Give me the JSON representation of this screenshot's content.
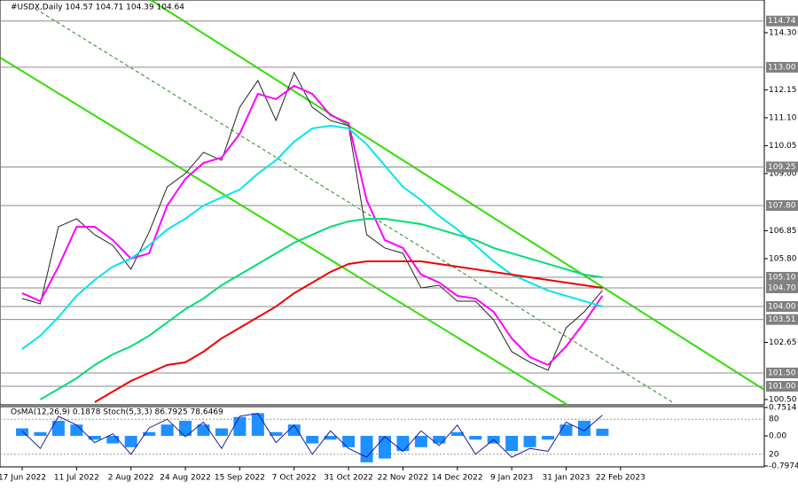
{
  "chart_data": {
    "type": "line",
    "title": "#USDX,Daily  104.57 104.71 104.39 104.64",
    "categories": [
      "17 Jun 2022",
      null,
      null,
      "11 Jul 2022",
      null,
      null,
      "2 Aug 2022",
      null,
      null,
      "24 Aug 2022",
      null,
      null,
      "15 Sep 2022",
      null,
      null,
      "7 Oct 2022",
      null,
      null,
      "31 Oct 2022",
      null,
      null,
      "22 Nov 2022",
      null,
      null,
      "14 Dec 2022",
      null,
      null,
      "9 Jan 2023",
      null,
      null,
      "31 Jan 2023",
      null,
      null,
      "22 Feb 2023"
    ],
    "series": [
      {
        "color": "#222222",
        "values": [
          104.3,
          104.1,
          107.0,
          107.3,
          106.7,
          106.3,
          105.4,
          106.8,
          108.5,
          109.0,
          109.8,
          109.5,
          111.5,
          112.5,
          111.0,
          112.8,
          111.5,
          111.0,
          110.8,
          106.7,
          106.2,
          106.0,
          104.7,
          104.8,
          104.2,
          104.2,
          103.5,
          102.3,
          101.9,
          101.6,
          103.2,
          103.8,
          104.6,
          null
        ]
      },
      {
        "color": "#ff00ff",
        "values": [
          104.5,
          104.2,
          105.5,
          107.0,
          107.0,
          106.5,
          105.8,
          106.0,
          107.8,
          108.8,
          109.4,
          109.6,
          110.5,
          112.0,
          111.8,
          112.3,
          112.0,
          111.2,
          110.9,
          108.0,
          106.5,
          106.2,
          105.2,
          104.9,
          104.4,
          104.3,
          103.8,
          102.8,
          102.1,
          101.8,
          102.5,
          103.4,
          104.4,
          null
        ]
      },
      {
        "color": "#00e5ee",
        "values": [
          102.4,
          102.9,
          103.6,
          104.4,
          105.0,
          105.5,
          105.8,
          106.3,
          106.9,
          107.3,
          107.8,
          108.1,
          108.4,
          109.0,
          109.5,
          110.2,
          110.7,
          110.8,
          110.7,
          110.1,
          109.3,
          108.5,
          108.0,
          107.4,
          106.9,
          106.3,
          105.7,
          105.2,
          104.9,
          104.6,
          104.4,
          104.2,
          104.0,
          null
        ]
      },
      {
        "color": "#00dd77",
        "values": [
          null,
          100.5,
          100.9,
          101.3,
          101.8,
          102.2,
          102.5,
          102.9,
          103.4,
          103.9,
          104.3,
          104.8,
          105.2,
          105.6,
          106.0,
          106.4,
          106.7,
          107.0,
          107.2,
          107.3,
          107.3,
          107.2,
          107.1,
          106.9,
          106.7,
          106.5,
          106.2,
          106.0,
          105.8,
          105.6,
          105.4,
          105.2,
          105.1,
          null
        ]
      },
      {
        "color": "#ee0000",
        "values": [
          null,
          null,
          null,
          null,
          100.4,
          100.8,
          101.2,
          101.5,
          101.8,
          101.9,
          102.3,
          102.8,
          103.2,
          103.6,
          104.0,
          104.5,
          104.9,
          105.3,
          105.6,
          105.7,
          105.7,
          105.7,
          105.7,
          105.6,
          105.5,
          105.4,
          105.3,
          105.2,
          105.1,
          105.0,
          104.9,
          104.8,
          104.7,
          null
        ]
      }
    ],
    "ylim": [
      100.3,
      115.53
    ],
    "yticks": [
      {
        "value": 114.3,
        "label": "114.30"
      },
      112.15,
      {
        "value": 111.1,
        "label": "111.10"
      },
      110.05,
      {
        "value": 109,
        "label": "109.00"
      },
      106.85,
      {
        "value": 105.8,
        "label": "105.80"
      },
      102.65,
      {
        "value": 100.5,
        "label": "100.50"
      }
    ],
    "levels": [
      114.74,
      {
        "value": 113,
        "label": "113.00"
      },
      109.25,
      {
        "value": 107.8,
        "label": "107.80"
      },
      {
        "value": 105.1,
        "label": "105.10"
      },
      {
        "value": 104.7,
        "label": "104.70"
      },
      {
        "value": 104,
        "label": "104.00"
      },
      103.51,
      {
        "value": 101.5,
        "label": "101.50"
      },
      {
        "value": 101,
        "label": "101.00"
      }
    ],
    "indicator": {
      "title": "OsMA(12,26,9) 0.1878  Stoch(5,3,3) 86.7925 78.6469",
      "osma": {
        "color": "#1e90ff",
        "values": [
          0.2,
          0.1,
          0.4,
          0.3,
          -0.1,
          -0.2,
          -0.3,
          0.1,
          0.3,
          0.4,
          0.3,
          0.2,
          0.5,
          0.6,
          0.1,
          0.3,
          -0.2,
          -0.1,
          -0.3,
          -0.7,
          -0.6,
          -0.4,
          -0.3,
          -0.2,
          0.1,
          -0.1,
          -0.2,
          -0.4,
          -0.3,
          -0.1,
          0.3,
          0.4,
          0.19,
          null
        ]
      },
      "stoch": {
        "color": "#1a1aa0",
        "values": [
          60,
          30,
          85,
          70,
          40,
          55,
          20,
          65,
          80,
          50,
          75,
          30,
          85,
          90,
          40,
          70,
          20,
          60,
          30,
          15,
          50,
          25,
          60,
          35,
          70,
          20,
          45,
          15,
          30,
          25,
          75,
          60,
          87,
          null
        ]
      },
      "ylim": [
        -0.7974,
        0.7514
      ],
      "yticks": [
        {
          "value": 0.7514,
          "label": "0.7514"
        },
        {
          "value": 0,
          "label": "0.00"
        },
        {
          "value": -0.7974,
          "label": "-0.7974"
        }
      ],
      "stoch_ylim": [
        0,
        100
      ],
      "stoch_yticks": [
        80,
        20
      ]
    }
  }
}
